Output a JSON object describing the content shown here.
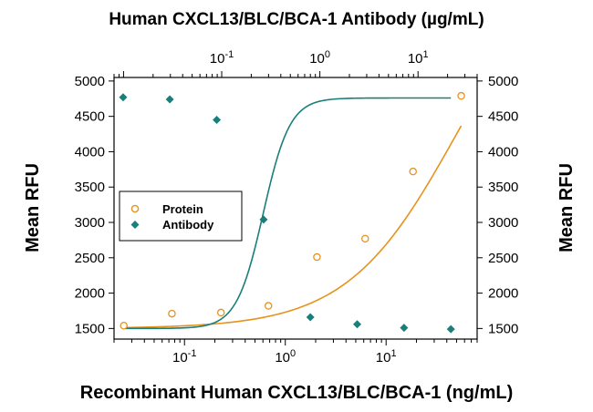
{
  "chart_data": {
    "type": "scatter",
    "title": "Human CXCL13/BLC/BCA-1 Antibody (µg/mL)",
    "xlabel": "Recombinant Human CXCL13/BLC/BCA-1 (ng/mL)",
    "ylabel_left": "Mean RFU",
    "ylabel_right": "Mean RFU",
    "x_scale": "log",
    "xlim": [
      0.02,
      80
    ],
    "ylim": [
      1350,
      5050
    ],
    "y_ticks": [
      1500,
      2000,
      2500,
      3000,
      3500,
      4000,
      4500,
      5000
    ],
    "x_ticks_bottom": [
      {
        "value": 0.1,
        "label_base": "10",
        "label_exp": "-1"
      },
      {
        "value": 1,
        "label_base": "10",
        "label_exp": "0"
      },
      {
        "value": 10,
        "label_base": "10",
        "label_exp": "1"
      }
    ],
    "x_ticks_top": [
      {
        "value": 0.1,
        "label_base": "10",
        "label_exp": "-1"
      },
      {
        "value": 1,
        "label_base": "10",
        "label_exp": "0"
      },
      {
        "value": 10,
        "label_base": "10",
        "label_exp": "1"
      }
    ],
    "top_axis_x_range": [
      0.008,
      40
    ],
    "legend": {
      "position": "left-middle"
    },
    "grid": false,
    "series": [
      {
        "name": "Protein",
        "marker": "open-circle",
        "color": "#E8921E",
        "x_axis": "bottom",
        "x": [
          0.025,
          0.075,
          0.23,
          0.68,
          2.06,
          6.2,
          18.5,
          55.6
        ],
        "y": [
          1540,
          1710,
          1725,
          1820,
          2510,
          2770,
          3720,
          4790
        ],
        "fit": "4pl",
        "fit_params": {
          "bottom": 1500,
          "top": 7000,
          "ec50": 50,
          "hill": 0.8
        }
      },
      {
        "name": "Antibody",
        "marker": "filled-diamond",
        "color": "#1A7F7A",
        "x_axis": "top",
        "x": [
          0.0099,
          0.0296,
          0.089,
          0.267,
          0.8,
          2.4,
          7.2,
          21.6
        ],
        "y": [
          4770,
          4740,
          4450,
          3040,
          1660,
          1560,
          1510,
          1490
        ],
        "fit": "4pl",
        "fit_params": {
          "bottom": 1500,
          "top": 4760,
          "ec50": 0.265,
          "hill": 3.2
        }
      }
    ]
  }
}
